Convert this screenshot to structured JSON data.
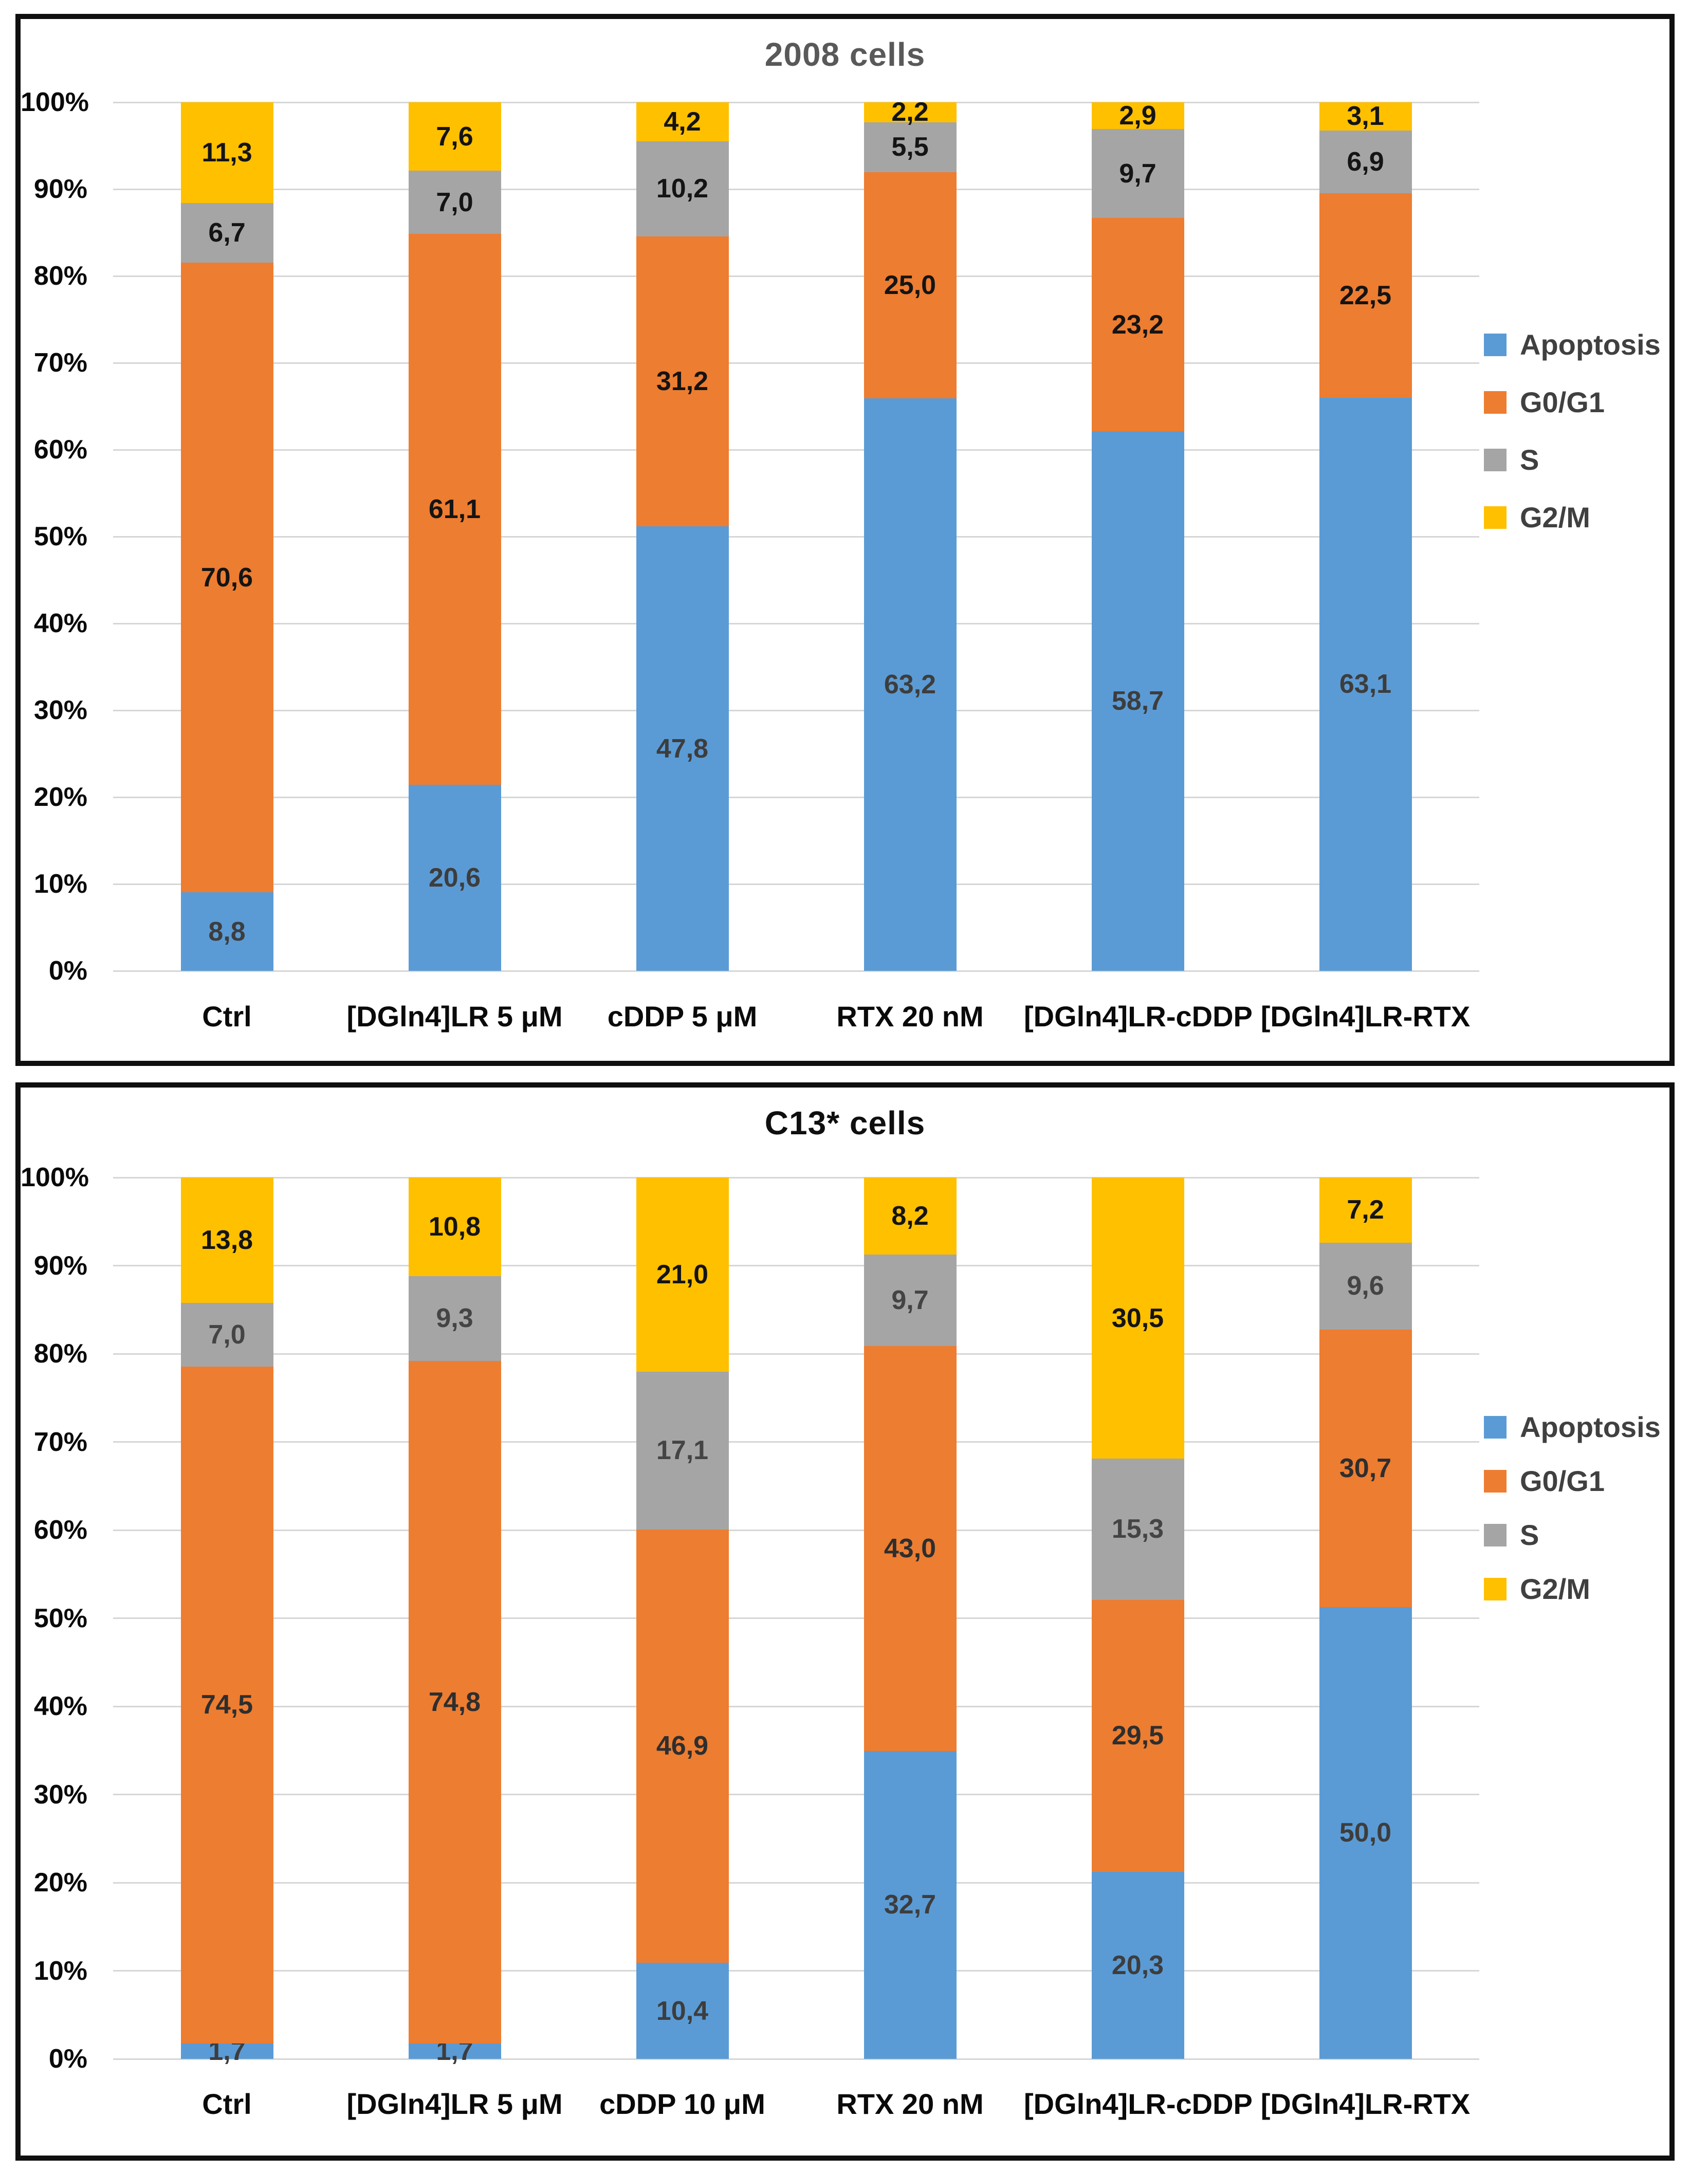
{
  "page": {
    "background": "#ffffff",
    "panel_border_color": "#0f0f0f",
    "gridline_color": "#d6d6d6"
  },
  "y_axis": {
    "ticks": [
      "100%",
      "90%",
      "80%",
      "70%",
      "60%",
      "50%",
      "40%",
      "30%",
      "20%",
      "10%",
      "0%"
    ],
    "ylim": [
      0,
      100
    ]
  },
  "legend": {
    "position": "right",
    "entries": [
      "Apoptosis",
      "G0/G1",
      "S",
      "G2/M"
    ]
  },
  "chart_data": [
    {
      "type": "bar",
      "subtype": "stacked-100-percent",
      "title": "2008 cells",
      "title_color": "#595959",
      "grid": true,
      "legend_position": "right",
      "ylim": [
        0,
        100
      ],
      "categories": [
        "Ctrl",
        "[DGln4]LR 5 μM",
        "cDDP 5 μM",
        "RTX 20 nM",
        "[DGln4]LR-cDDP",
        "[DGln4]LR-RTX"
      ],
      "series": [
        {
          "name": "Apoptosis",
          "color": "#5B9BD5",
          "label_color": "#3d3d3d",
          "values": [
            8.8,
            20.6,
            47.8,
            63.2,
            58.7,
            63.1
          ],
          "labels": [
            "8,8",
            "20,6",
            "47,8",
            "63,2",
            "58,7",
            "63,1"
          ]
        },
        {
          "name": "G0/G1",
          "color": "#ED7D31",
          "label_color": "#141414",
          "values": [
            70.6,
            61.1,
            31.2,
            25.0,
            23.2,
            22.5
          ],
          "labels": [
            "70,6",
            "61,1",
            "31,2",
            "25,0",
            "23,2",
            "22,5"
          ]
        },
        {
          "name": "S",
          "color": "#A5A5A5",
          "label_color": "#141414",
          "values": [
            6.7,
            7.0,
            10.2,
            5.5,
            9.7,
            6.9
          ],
          "labels": [
            "6,7",
            "7,0",
            "10,2",
            "5,5",
            "9,7",
            "6,9"
          ]
        },
        {
          "name": "G2/M",
          "color": "#FFC000",
          "label_color": "#141414",
          "values": [
            11.3,
            7.6,
            4.2,
            2.2,
            2.9,
            3.1
          ],
          "labels": [
            "11,3",
            "7,6",
            "4,2",
            "2,2",
            "2,9",
            "3,1"
          ]
        }
      ]
    },
    {
      "type": "bar",
      "subtype": "stacked-100-percent",
      "title": "C13* cells",
      "title_color": "#0f0f0f",
      "grid": true,
      "legend_position": "right",
      "ylim": [
        0,
        100
      ],
      "categories": [
        "Ctrl",
        "[DGln4]LR 5 μM",
        "cDDP 10 μM",
        "RTX 20 nM",
        "[DGln4]LR-cDDP",
        "[DGln4]LR-RTX"
      ],
      "series": [
        {
          "name": "Apoptosis",
          "color": "#5B9BD5",
          "label_color": "#3d3d3d",
          "values": [
            1.7,
            1.7,
            10.4,
            32.7,
            20.3,
            50.0
          ],
          "labels": [
            "1,7",
            "1,7",
            "10,4",
            "32,7",
            "20,3",
            "50,0"
          ]
        },
        {
          "name": "G0/G1",
          "color": "#ED7D31",
          "label_color": "#2e2e2e",
          "values": [
            74.5,
            74.8,
            46.9,
            43.0,
            29.5,
            30.7
          ],
          "labels": [
            "74,5",
            "74,8",
            "46,9",
            "43,0",
            "29,5",
            "30,7"
          ]
        },
        {
          "name": "S",
          "color": "#A5A5A5",
          "label_color": "#444444",
          "values": [
            7.0,
            9.3,
            17.1,
            9.7,
            15.3,
            9.6
          ],
          "labels": [
            "7,0",
            "9,3",
            "17,1",
            "9,7",
            "15,3",
            "9,6"
          ]
        },
        {
          "name": "G2/M",
          "color": "#FFC000",
          "label_color": "#141414",
          "values": [
            13.8,
            10.8,
            21.0,
            8.2,
            30.5,
            7.2
          ],
          "labels": [
            "13,8",
            "10,8",
            "21,0",
            "8,2",
            "30,5",
            "7,2"
          ]
        }
      ]
    }
  ]
}
